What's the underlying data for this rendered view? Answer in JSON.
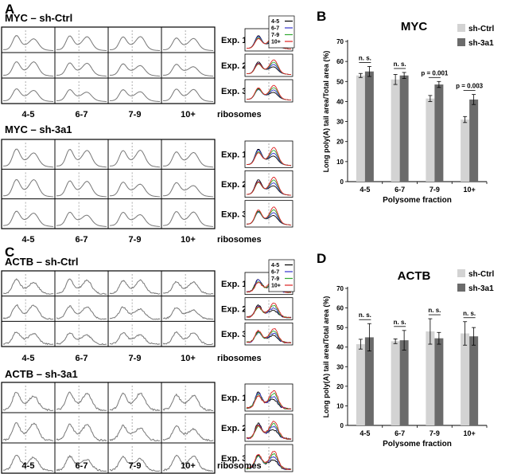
{
  "figure": {
    "panels": [
      {
        "letter": "A",
        "groups": [
          {
            "title": "MYC – sh-Ctrl",
            "rows": [
              "Exp. 1",
              "Exp. 2",
              "Exp. 3"
            ],
            "columns": [
              "4-5",
              "6-7",
              "7-9",
              "10+"
            ],
            "axis_suffix": "ribosomes",
            "profile_style": "smooth",
            "legend": [
              "4-5",
              "6-7",
              "7-9",
              "10+"
            ]
          },
          {
            "title": "MYC – sh-3a1",
            "rows": [
              "Exp. 1",
              "Exp. 2",
              "Exp. 3"
            ],
            "columns": [
              "4-5",
              "6-7",
              "7-9",
              "10+"
            ],
            "axis_suffix": "ribosomes",
            "profile_style": "smooth",
            "legend": []
          }
        ]
      },
      {
        "letter": "C",
        "groups": [
          {
            "title": "ACTB – sh-Ctrl",
            "rows": [
              "Exp. 1",
              "Exp. 2",
              "Exp. 3"
            ],
            "columns": [
              "4-5",
              "6-7",
              "7-9",
              "10+"
            ],
            "axis_suffix": "ribosomes",
            "profile_style": "noisy",
            "legend": [
              "4-5",
              "6-7",
              "7-9",
              "10+"
            ]
          },
          {
            "title": "ACTB – sh-3a1",
            "rows": [
              "Exp. 1",
              "Exp. 2",
              "Exp. 3"
            ],
            "columns": [
              "4-5",
              "6-7",
              "7-9",
              "10+"
            ],
            "axis_suffix": "ribosomes",
            "profile_style": "noisy",
            "legend": []
          }
        ]
      }
    ],
    "overlay_colors": [
      "#000000",
      "#3333cc",
      "#33aa33",
      "#dd2222"
    ]
  },
  "chart_data": [
    {
      "panel": "B",
      "type": "bar",
      "title": "MYC",
      "xlabel": "Polysome fraction",
      "ylabel": "Long poly(A) tail area/Total area (%)",
      "ylim": [
        0,
        70
      ],
      "yticks": [
        0,
        10,
        20,
        30,
        40,
        50,
        60,
        70
      ],
      "categories": [
        "4-5",
        "6-7",
        "7-9",
        "10+"
      ],
      "series": [
        {
          "name": "sh-Ctrl",
          "color": "#d3d3d3",
          "values": [
            53,
            51,
            41.5,
            31
          ],
          "errors": [
            1,
            2.5,
            1.5,
            1.5
          ]
        },
        {
          "name": "sh-3a1",
          "color": "#6b6b6b",
          "values": [
            55,
            53,
            48.5,
            41
          ],
          "errors": [
            2.5,
            1.5,
            1.5,
            2.5
          ]
        }
      ],
      "annotations": [
        "n. s.",
        "n. s.",
        "p = 0.001",
        "p = 0.003"
      ]
    },
    {
      "panel": "D",
      "type": "bar",
      "title": "ACTB",
      "xlabel": "Polysome fraction",
      "ylabel": "Long poly(A) tail area/Total area (%)",
      "ylim": [
        0,
        70
      ],
      "yticks": [
        0,
        10,
        20,
        30,
        40,
        50,
        60,
        70
      ],
      "categories": [
        "4-5",
        "6-7",
        "7-9",
        "10+"
      ],
      "series": [
        {
          "name": "sh-Ctrl",
          "color": "#d3d3d3",
          "values": [
            41.5,
            43,
            48,
            47
          ],
          "errors": [
            2.5,
            1.2,
            6.5,
            6
          ]
        },
        {
          "name": "sh-3a1",
          "color": "#6b6b6b",
          "values": [
            45,
            43.5,
            44.5,
            45.5
          ],
          "errors": [
            7,
            5,
            3,
            4.5
          ]
        }
      ],
      "annotations": [
        "n. s.",
        "n. s.",
        "n. s.",
        "n. s."
      ]
    }
  ]
}
